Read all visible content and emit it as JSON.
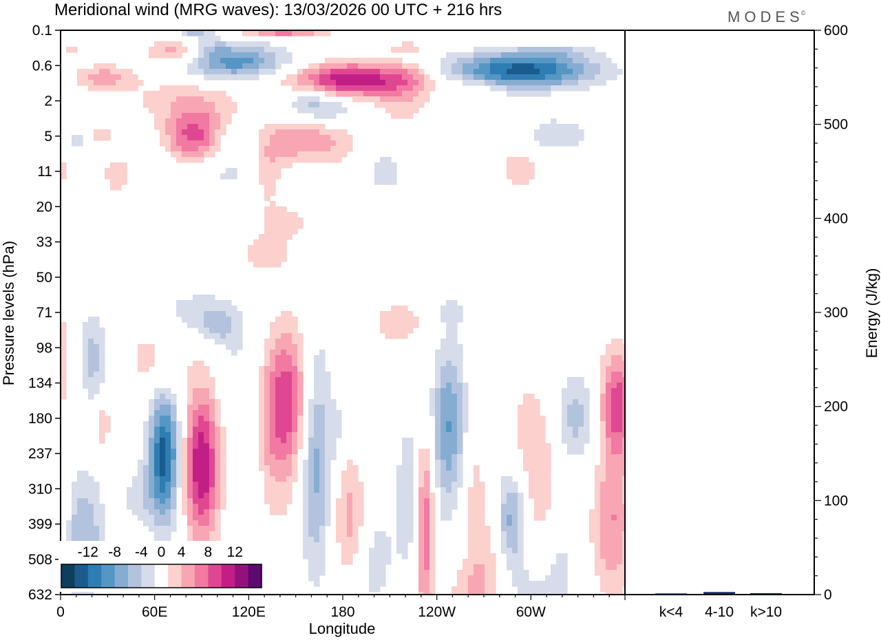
{
  "chart_data": {
    "type": "heatmap",
    "title": "Meridional wind (MRG waves):  13/03/2026  00 UTC  + 216 hrs",
    "brand": "MODES",
    "brand_mark": "©",
    "xlabel": "Longitude",
    "ylabel": "Pressure levels (hPa)",
    "x_ticks": [
      "0",
      "60E",
      "120E",
      "180",
      "120W",
      "60W"
    ],
    "x_tick_values": [
      0,
      60,
      120,
      180,
      240,
      300
    ],
    "xlim": [
      0,
      360
    ],
    "y_ticks": [
      "0.1",
      "0.6",
      "2",
      "5",
      "11",
      "20",
      "33",
      "50",
      "71",
      "98",
      "134",
      "180",
      "237",
      "310",
      "399",
      "508",
      "632"
    ],
    "colorbar": {
      "labels": [
        "-12",
        "-8",
        "-4",
        "0",
        "4",
        "8",
        "12"
      ],
      "label_values": [
        -12,
        -8,
        -4,
        0,
        4,
        8,
        12
      ],
      "levels": [
        -14,
        -12,
        -10,
        -8,
        -6,
        -4,
        -2,
        2,
        4,
        6,
        8,
        10,
        12,
        14
      ],
      "colors": [
        "#0d3f5c",
        "#1a5c8e",
        "#2e7db3",
        "#5596c4",
        "#86acd2",
        "#b3c3de",
        "#d6dcea",
        "#ffffff",
        "#fbd0cd",
        "#f8a6b4",
        "#f179a2",
        "#e04792",
        "#c21f86",
        "#94117d",
        "#5e0a6e"
      ]
    },
    "energy_panel": {
      "ylabel": "Energy (J/kg)",
      "ylim": [
        0,
        600
      ],
      "y_ticks": [
        "0",
        "100",
        "200",
        "300",
        "400",
        "500",
        "600"
      ],
      "y_tick_values": [
        0,
        100,
        200,
        300,
        400,
        500,
        600
      ],
      "categories": [
        "k<4",
        "4-10",
        "k>10"
      ],
      "values": [
        0.5,
        2,
        0.8
      ]
    },
    "blobs": [
      {
        "lon": 74,
        "lev": 0.3,
        "w": 14,
        "h": 0.22,
        "v": 6
      },
      {
        "lon": 86,
        "lev": 0.1,
        "w": 8,
        "h": 0.12,
        "v": -6
      },
      {
        "lon": 112,
        "lev": 0.5,
        "w": 24,
        "h": 0.35,
        "v": -9
      },
      {
        "lon": 94,
        "lev": 0.25,
        "w": 10,
        "h": 0.2,
        "v": -3
      },
      {
        "lon": 142,
        "lev": 0.05,
        "w": 20,
        "h": 0.12,
        "v": 8
      },
      {
        "lon": 185,
        "lev": 1.0,
        "w": 28,
        "h": 0.35,
        "v": 12
      },
      {
        "lon": 220,
        "lev": 0.25,
        "w": 10,
        "h": 0.15,
        "v": 3
      },
      {
        "lon": 295,
        "lev": 0.7,
        "w": 32,
        "h": 0.35,
        "v": -13
      },
      {
        "lon": 315,
        "lev": 0.3,
        "w": 16,
        "h": 0.12,
        "v": -3
      },
      {
        "lon": 28,
        "lev": 0.9,
        "w": 14,
        "h": 0.25,
        "v": 5
      },
      {
        "lon": 8,
        "lev": 0.25,
        "w": 5,
        "h": 0.12,
        "v": 3
      },
      {
        "lon": 80,
        "lev": 1.9,
        "w": 28,
        "h": 0.45,
        "v": 3
      },
      {
        "lon": 86,
        "lev": 5.0,
        "w": 14,
        "h": 0.55,
        "v": 9
      },
      {
        "lon": 158,
        "lev": 1.9,
        "w": 12,
        "h": 0.35,
        "v": -3
      },
      {
        "lon": 170,
        "lev": 2.4,
        "w": 18,
        "h": 0.35,
        "v": -4
      },
      {
        "lon": 218,
        "lev": 2.4,
        "w": 14,
        "h": 0.4,
        "v": 3
      },
      {
        "lon": 282,
        "lev": 2.6,
        "w": 28,
        "h": 0.28,
        "v": -2
      },
      {
        "lon": 318,
        "lev": 5.0,
        "w": 14,
        "h": 0.3,
        "v": -4
      },
      {
        "lon": 155,
        "lev": 5.6,
        "w": 22,
        "h": 0.5,
        "v": 6
      },
      {
        "lon": 112,
        "lev": 5.0,
        "w": 12,
        "h": 0.28,
        "v": -3
      },
      {
        "lon": 265,
        "lev": 1.4,
        "w": 10,
        "h": 0.22,
        "v": 3
      },
      {
        "lon": 222,
        "lev": 0.9,
        "w": 12,
        "h": 0.3,
        "v": 3
      },
      {
        "lon": 27,
        "lev": 5.0,
        "w": 6,
        "h": 0.2,
        "v": 3
      },
      {
        "lon": 10,
        "lev": 5.5,
        "w": 5,
        "h": 0.25,
        "v": -3
      },
      {
        "lon": 33,
        "lev": 7.0,
        "w": 6,
        "h": 0.25,
        "v": -2
      },
      {
        "lon": 36,
        "lev": 11.0,
        "w": 8,
        "h": 0.55,
        "v": 3
      },
      {
        "lon": 62,
        "lev": 11.0,
        "w": 6,
        "h": 0.6,
        "v": -2
      },
      {
        "lon": 105,
        "lev": 10.0,
        "w": 15,
        "h": 0.45,
        "v": -3
      },
      {
        "lon": 132,
        "lev": 11.5,
        "w": 7,
        "h": 0.7,
        "v": 3
      },
      {
        "lon": 158,
        "lev": 11.5,
        "w": 7,
        "h": 0.4,
        "v": -2
      },
      {
        "lon": 207,
        "lev": 11.0,
        "w": 10,
        "h": 0.5,
        "v": -3
      },
      {
        "lon": 293,
        "lev": 10.5,
        "w": 10,
        "h": 0.5,
        "v": 3
      },
      {
        "lon": 311,
        "lev": 15.0,
        "w": 5,
        "h": 0.35,
        "v": -2
      },
      {
        "lon": 2,
        "lev": 11.0,
        "w": 3,
        "h": 0.3,
        "v": 3
      },
      {
        "lon": 144,
        "lev": 25.0,
        "w": 12,
        "h": 0.35,
        "v": 3
      },
      {
        "lon": 131,
        "lev": 38.0,
        "w": 12,
        "h": 0.4,
        "v": 3
      },
      {
        "lon": 84,
        "lev": 71.0,
        "w": 22,
        "h": 0.5,
        "v": -3
      },
      {
        "lon": 100,
        "lev": 80.0,
        "w": 8,
        "h": 0.35,
        "v": -4
      },
      {
        "lon": 115,
        "lev": 110.0,
        "w": 10,
        "h": 0.9,
        "v": -2
      },
      {
        "lon": 216,
        "lev": 78.0,
        "w": 15,
        "h": 0.5,
        "v": 3
      },
      {
        "lon": 248,
        "lev": 70.0,
        "w": 10,
        "h": 0.35,
        "v": -2
      },
      {
        "lon": 286,
        "lev": 75.0,
        "w": 6,
        "h": 0.25,
        "v": -2
      },
      {
        "lon": 20,
        "lev": 105.0,
        "w": 5,
        "h": 0.8,
        "v": -3
      },
      {
        "lon": 22,
        "lev": 110.0,
        "w": 8,
        "h": 1.0,
        "v": -2
      },
      {
        "lon": 1,
        "lev": 110.0,
        "w": 4,
        "h": 1.2,
        "v": 3
      },
      {
        "lon": 60,
        "lev": 110.0,
        "w": 14,
        "h": 0.9,
        "v": 3
      },
      {
        "lon": 27,
        "lev": 190.0,
        "w": 3,
        "h": 0.5,
        "v": 4
      },
      {
        "lon": 66,
        "lev": 240.0,
        "w": 7,
        "h": 1.3,
        "v": -13
      },
      {
        "lon": 90,
        "lev": 260.0,
        "w": 8,
        "h": 1.5,
        "v": 12
      },
      {
        "lon": 145,
        "lev": 150.0,
        "w": 10,
        "h": 1.4,
        "v": 7
      },
      {
        "lon": 138,
        "lev": 200.0,
        "w": 10,
        "h": 1.8,
        "v": 4
      },
      {
        "lon": 163,
        "lev": 250.0,
        "w": 7,
        "h": 2.3,
        "v": -7
      },
      {
        "lon": 185,
        "lev": 380.0,
        "w": 8,
        "h": 1.2,
        "v": 5
      },
      {
        "lon": 228,
        "lev": 330.0,
        "w": 8,
        "h": 1.6,
        "v": -7
      },
      {
        "lon": 232,
        "lev": 370.0,
        "w": 5,
        "h": 1.8,
        "v": 13
      },
      {
        "lon": 248,
        "lev": 190.0,
        "w": 8,
        "h": 1.6,
        "v": -8
      },
      {
        "lon": 263,
        "lev": 260.0,
        "w": 6,
        "h": 1.6,
        "v": 3
      },
      {
        "lon": 288,
        "lev": 380.0,
        "w": 7,
        "h": 1.0,
        "v": -8
      },
      {
        "lon": 302,
        "lev": 260.0,
        "w": 12,
        "h": 1.8,
        "v": 4
      },
      {
        "lon": 328,
        "lev": 180.0,
        "w": 10,
        "h": 0.9,
        "v": -5
      },
      {
        "lon": 355,
        "lev": 160.0,
        "w": 8,
        "h": 1.1,
        "v": 9
      },
      {
        "lon": 352,
        "lev": 400.0,
        "w": 9,
        "h": 1.5,
        "v": 6
      },
      {
        "lon": 15,
        "lev": 440.0,
        "w": 9,
        "h": 1.3,
        "v": -6
      },
      {
        "lon": 2,
        "lev": 330.0,
        "w": 3,
        "h": 0.7,
        "v": 3
      },
      {
        "lon": 50,
        "lev": 330.0,
        "w": 8,
        "h": 0.6,
        "v": -3
      },
      {
        "lon": 124,
        "lev": 310.0,
        "w": 3,
        "h": 1.0,
        "v": -2
      },
      {
        "lon": 200,
        "lev": 500.0,
        "w": 9,
        "h": 1.3,
        "v": -3
      },
      {
        "lon": 272,
        "lev": 520.0,
        "w": 9,
        "h": 1.2,
        "v": 3
      },
      {
        "lon": 320,
        "lev": 480.0,
        "w": 6,
        "h": 1.0,
        "v": -2
      },
      {
        "lon": 270,
        "lev": 190.0,
        "w": 6,
        "h": 0.6,
        "v": -2
      },
      {
        "lon": 177,
        "lev": 195.0,
        "w": 3,
        "h": 0.7,
        "v": -2
      },
      {
        "lon": 196,
        "lev": 200.0,
        "w": 2,
        "h": 0.6,
        "v": -2
      },
      {
        "lon": 305,
        "lev": 630.0,
        "w": 14,
        "h": 0.8,
        "v": -3
      },
      {
        "lon": 260,
        "lev": 620.0,
        "w": 10,
        "h": 0.6,
        "v": 3
      }
    ]
  }
}
